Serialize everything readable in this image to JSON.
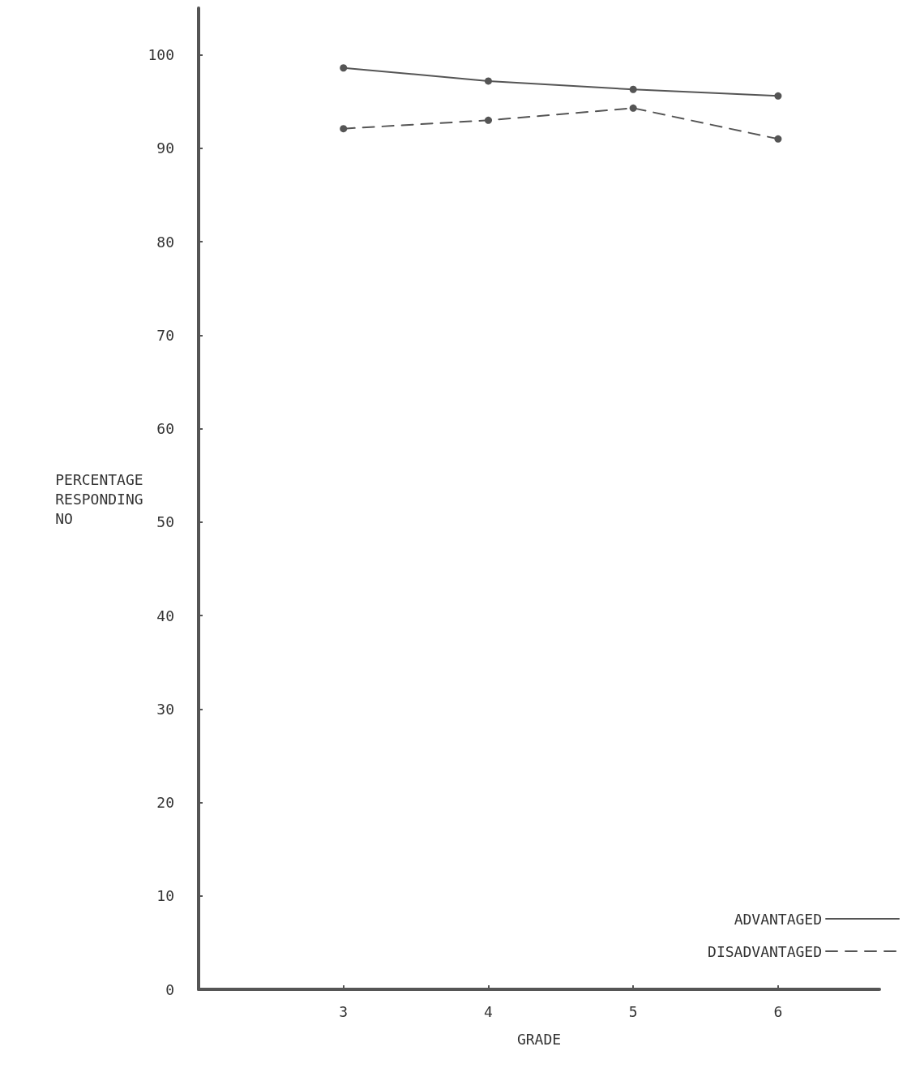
{
  "chart_data": {
    "type": "line",
    "xlabel": "GRADE",
    "ylabel": "PERCENTAGE RESPONDING NO",
    "x": [
      3,
      4,
      5,
      6
    ],
    "series": [
      {
        "name": "ADVANTAGED",
        "color": "#555555",
        "line_style": "solid",
        "values": [
          98.6,
          97.2,
          96.3,
          95.6
        ]
      },
      {
        "name": "DISADVANTAGED",
        "color": "#555555",
        "line_style": "dashed",
        "values": [
          92.1,
          93.0,
          94.3,
          91.0
        ]
      }
    ],
    "xlim": [
      2,
      6.7
    ],
    "xticks": [
      3,
      4,
      5,
      6
    ],
    "ylim": [
      0,
      105
    ],
    "yticks": [
      0,
      10,
      20,
      30,
      40,
      50,
      60,
      70,
      80,
      90,
      100
    ],
    "grid": false,
    "legend": "bottom right",
    "marker": "circle"
  }
}
